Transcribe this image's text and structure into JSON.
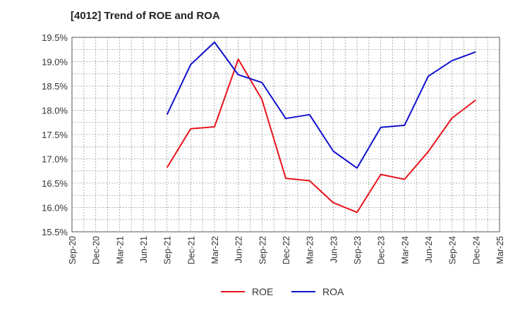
{
  "chart_data": {
    "type": "line",
    "title": "[4012]  Trend of ROE and ROA",
    "xlabel": "",
    "ylabel": "",
    "categories": [
      "Sep-20",
      "Dec-20",
      "Mar-21",
      "Jun-21",
      "Sep-21",
      "Dec-21",
      "Mar-22",
      "Jun-22",
      "Sep-22",
      "Dec-22",
      "Mar-23",
      "Jun-23",
      "Sep-23",
      "Dec-23",
      "Mar-24",
      "Jun-24",
      "Sep-24",
      "Dec-24",
      "Mar-25"
    ],
    "y_ticks": [
      "15.5%",
      "16.0%",
      "16.5%",
      "17.0%",
      "17.5%",
      "18.0%",
      "18.5%",
      "19.0%",
      "19.5%"
    ],
    "ylim": [
      15.5,
      19.5
    ],
    "grid": true,
    "legend_position": "bottom",
    "series": [
      {
        "name": "ROE",
        "color": "#e8141b",
        "values": [
          null,
          null,
          null,
          null,
          16.82,
          17.62,
          17.66,
          19.05,
          18.22,
          16.6,
          16.55,
          16.1,
          15.9,
          16.68,
          16.58,
          17.15,
          17.84,
          18.21,
          null
        ]
      },
      {
        "name": "ROA",
        "color": "#1111cc",
        "values": [
          null,
          null,
          null,
          null,
          17.91,
          18.94,
          19.4,
          18.73,
          18.57,
          17.83,
          17.91,
          17.16,
          16.81,
          17.65,
          17.69,
          18.7,
          19.02,
          19.2,
          null
        ]
      }
    ]
  }
}
